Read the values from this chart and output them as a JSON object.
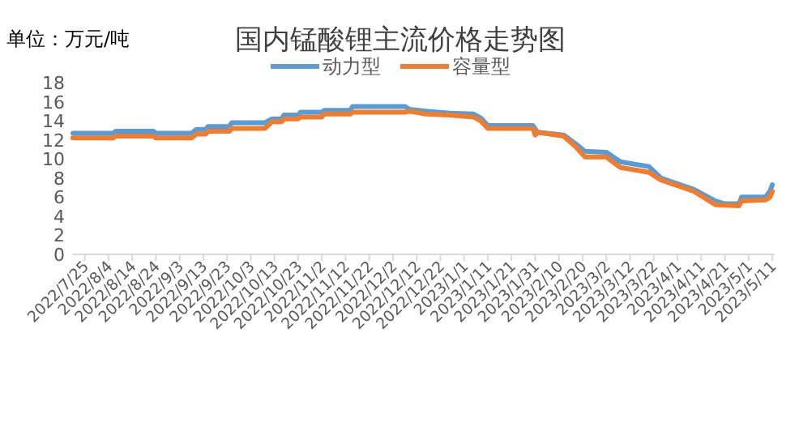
{
  "chart_data": {
    "type": "line",
    "title": "国内锰酸锂主流价格走势图",
    "ylabel": "单位：万元/吨",
    "legend": "top",
    "grid": false,
    "marker": "none",
    "line_style": "solid",
    "xlim": [
      "2022-07-20",
      "2023-05-12"
    ],
    "xticks": [
      {
        "value": "2022-07-25",
        "label": "2022/7/25"
      },
      {
        "value": "2022-08-04",
        "label": "2022/8/4"
      },
      {
        "value": "2022-08-14",
        "label": "2022/8/14"
      },
      {
        "value": "2022-08-24",
        "label": "2022/8/24"
      },
      {
        "value": "2022-09-03",
        "label": "2022/9/3"
      },
      {
        "value": "2022-09-13",
        "label": "2022/9/13"
      },
      {
        "value": "2022-09-23",
        "label": "2022/9/23"
      },
      {
        "value": "2022-10-03",
        "label": "2022/10/3"
      },
      {
        "value": "2022-10-13",
        "label": "2022/10/13"
      },
      {
        "value": "2022-10-23",
        "label": "2022/10/23"
      },
      {
        "value": "2022-11-02",
        "label": "2022/11/2"
      },
      {
        "value": "2022-11-12",
        "label": "2022/11/12"
      },
      {
        "value": "2022-11-22",
        "label": "2022/11/22"
      },
      {
        "value": "2022-12-02",
        "label": "2022/12/2"
      },
      {
        "value": "2022-12-12",
        "label": "2022/12/12"
      },
      {
        "value": "2022-12-22",
        "label": "2022/12/22"
      },
      {
        "value": "2023-01-01",
        "label": "2023/1/1"
      },
      {
        "value": "2023-01-11",
        "label": "2023/1/11"
      },
      {
        "value": "2023-01-21",
        "label": "2023/1/21"
      },
      {
        "value": "2023-01-31",
        "label": "2023/1/31"
      },
      {
        "value": "2023-02-10",
        "label": "2023/2/10"
      },
      {
        "value": "2023-02-20",
        "label": "2023/2/20"
      },
      {
        "value": "2023-03-02",
        "label": "2023/3/2"
      },
      {
        "value": "2023-03-12",
        "label": "2023/3/12"
      },
      {
        "value": "2023-03-22",
        "label": "2023/3/22"
      },
      {
        "value": "2023-04-01",
        "label": "2023/4/1"
      },
      {
        "value": "2023-04-11",
        "label": "2023/4/11"
      },
      {
        "value": "2023-04-21",
        "label": "2023/4/21"
      },
      {
        "value": "2023-05-01",
        "label": "2023/5/1"
      },
      {
        "value": "2023-05-11",
        "label": "2023/5/11"
      }
    ],
    "ylim": [
      0,
      18
    ],
    "yticks": [
      0,
      2,
      4,
      6,
      8,
      10,
      12,
      14,
      16,
      18
    ],
    "series": [
      {
        "name": "动力型",
        "color": "#5b9bd5",
        "x": [
          "2022-07-20",
          "2022-08-06",
          "2022-08-07",
          "2022-08-23",
          "2022-08-24",
          "2022-09-08",
          "2022-09-10",
          "2022-09-14",
          "2022-09-15",
          "2022-09-24",
          "2022-09-25",
          "2022-10-09",
          "2022-10-12",
          "2022-10-16",
          "2022-10-17",
          "2022-10-23",
          "2022-10-24",
          "2022-11-02",
          "2022-11-03",
          "2022-11-14",
          "2022-11-15",
          "2022-12-07",
          "2022-12-09",
          "2022-12-16",
          "2022-12-26",
          "2023-01-05",
          "2023-01-08",
          "2023-01-11",
          "2023-01-30",
          "2023-02-01",
          "2023-02-12",
          "2023-02-17",
          "2023-02-21",
          "2023-03-02",
          "2023-03-08",
          "2023-03-20",
          "2023-03-25",
          "2023-04-08",
          "2023-04-17",
          "2023-04-21",
          "2023-04-27",
          "2023-04-28",
          "2023-05-08",
          "2023-05-10",
          "2023-05-11"
        ],
        "values": [
          12.7,
          12.7,
          12.9,
          12.9,
          12.7,
          12.7,
          13.1,
          13.1,
          13.4,
          13.4,
          13.8,
          13.8,
          14.2,
          14.2,
          14.6,
          14.6,
          14.9,
          14.9,
          15.1,
          15.1,
          15.5,
          15.5,
          15.2,
          15.0,
          14.8,
          14.7,
          14.3,
          13.5,
          13.5,
          12.8,
          12.5,
          11.6,
          10.8,
          10.7,
          9.7,
          9.2,
          8.0,
          6.8,
          5.6,
          5.3,
          5.3,
          6.0,
          6.0,
          6.6,
          7.3
        ]
      },
      {
        "name": "容量型",
        "color": "#ed7d31",
        "x": [
          "2022-07-20",
          "2022-08-06",
          "2022-08-07",
          "2022-08-23",
          "2022-08-24",
          "2022-09-08",
          "2022-09-10",
          "2022-09-14",
          "2022-09-15",
          "2022-09-24",
          "2022-09-25",
          "2022-10-09",
          "2022-10-12",
          "2022-10-16",
          "2022-10-17",
          "2022-10-23",
          "2022-10-24",
          "2022-11-02",
          "2022-11-03",
          "2022-11-14",
          "2022-11-15",
          "2022-12-07",
          "2022-12-09",
          "2022-12-16",
          "2022-12-26",
          "2023-01-05",
          "2023-01-08",
          "2023-01-11",
          "2023-01-30",
          "2023-01-31",
          "2023-02-01",
          "2023-02-12",
          "2023-02-17",
          "2023-02-21",
          "2023-03-02",
          "2023-03-08",
          "2023-03-20",
          "2023-03-25",
          "2023-04-08",
          "2023-04-17",
          "2023-04-27",
          "2023-04-28",
          "2023-05-08",
          "2023-05-10",
          "2023-05-11"
        ],
        "values": [
          12.2,
          12.2,
          12.4,
          12.4,
          12.2,
          12.2,
          12.6,
          12.6,
          12.9,
          12.9,
          13.2,
          13.2,
          13.9,
          13.9,
          14.2,
          14.2,
          14.4,
          14.4,
          14.7,
          14.7,
          14.9,
          14.9,
          15.0,
          14.7,
          14.6,
          14.4,
          14.0,
          13.2,
          13.2,
          12.5,
          12.8,
          12.4,
          11.3,
          10.2,
          10.2,
          9.1,
          8.6,
          7.8,
          6.6,
          5.2,
          5.1,
          5.6,
          5.7,
          6.0,
          6.6
        ]
      }
    ]
  }
}
